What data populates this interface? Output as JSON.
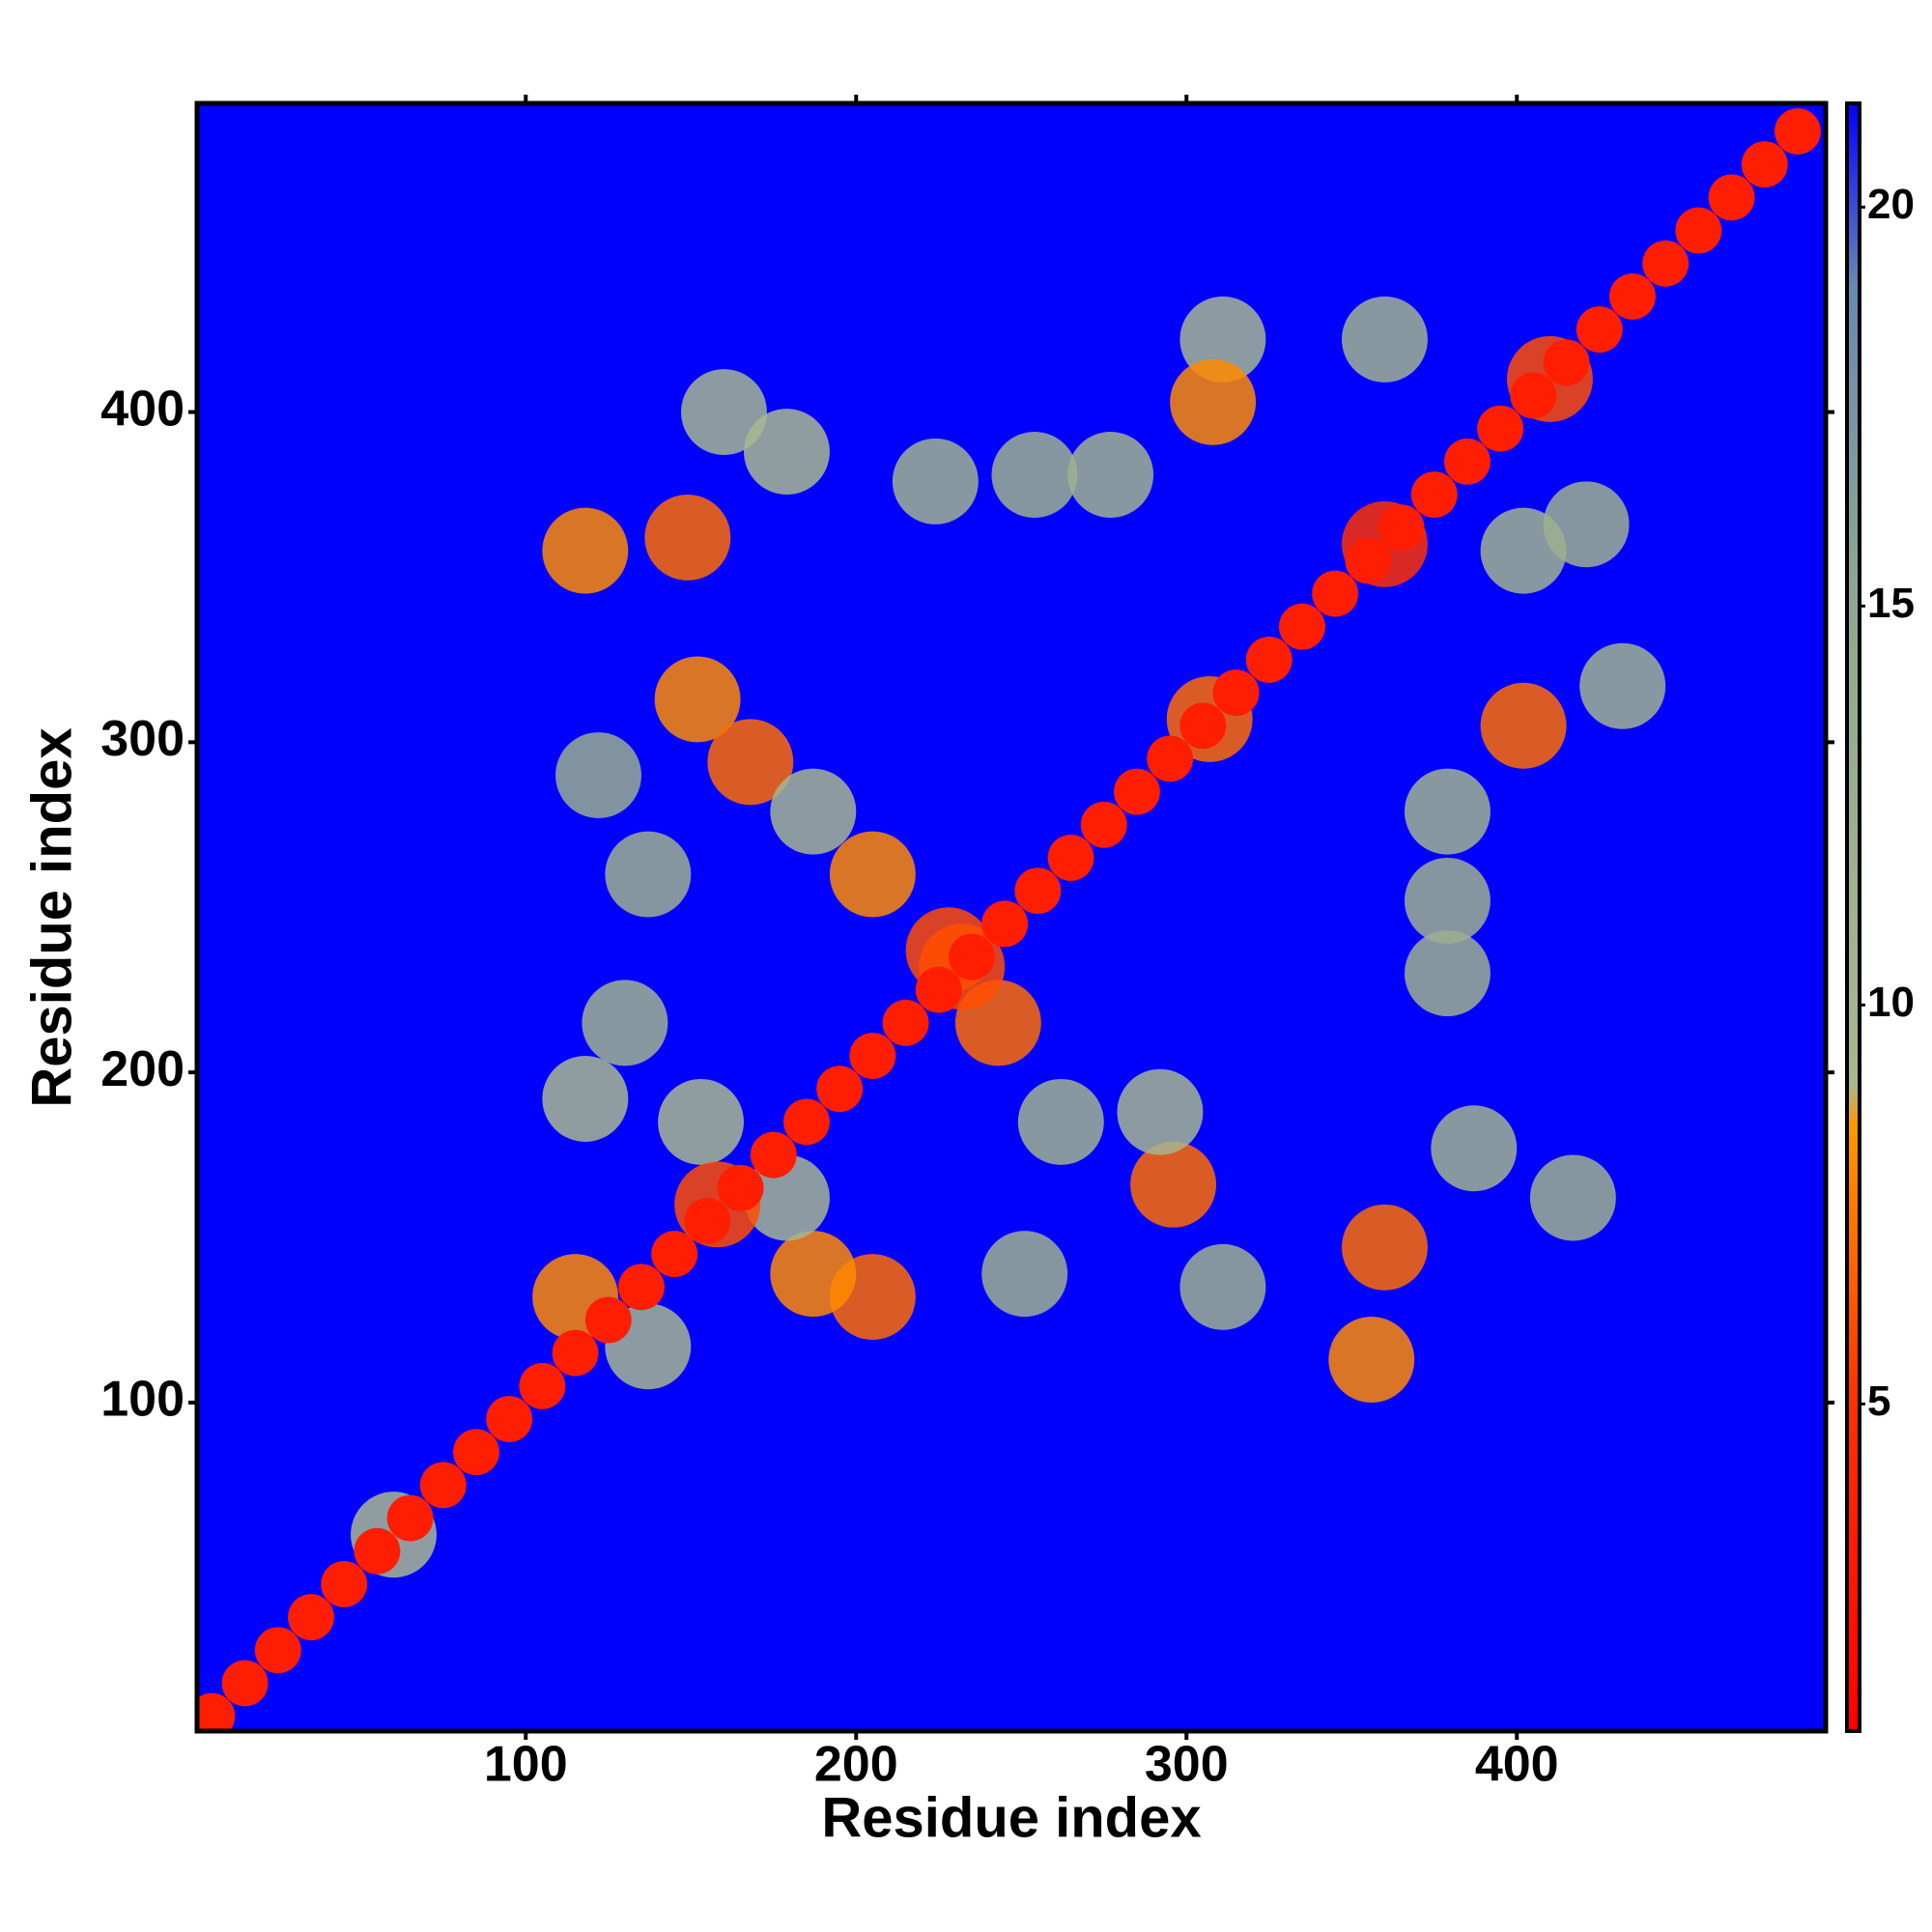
{
  "chart_data": {
    "type": "heatmap",
    "xlabel": "Residue index",
    "ylabel": "Residue index",
    "xlim": [
      0.5,
      493.5
    ],
    "ylim": [
      0.5,
      493.5
    ],
    "xticks": [
      100,
      200,
      300,
      400
    ],
    "yticks": [
      100,
      200,
      300,
      400
    ],
    "background_color": "#0000ff",
    "clim": [
      0.9,
      21.3
    ],
    "cticks": [
      5,
      10,
      15,
      20
    ],
    "colorscale": [
      [
        0.9,
        "#ff0000"
      ],
      [
        5,
        "#ff3000"
      ],
      [
        8.5,
        "#ff9900"
      ],
      [
        9,
        "#a8b890"
      ],
      [
        15,
        "#90a890"
      ],
      [
        19,
        "#6a88b0"
      ],
      [
        21.3,
        "#0000ff"
      ]
    ],
    "x": [
      360,
      356,
      387,
      417,
      296,
      292,
      311,
      262,
      251,
      205,
      187,
      179,
      243,
      228,
      379,
      379,
      379,
      402,
      432,
      402,
      421,
      360,
      311,
      308,
      277,
      254,
      224,
      149,
      118,
      160,
      179,
      152,
      168,
      187,
      137,
      130,
      118,
      115,
      137,
      153,
      205,
      122,
      158,
      360,
      410,
      307,
      232,
      60,
      5,
      15,
      25,
      35,
      45,
      55,
      65,
      75,
      85,
      95,
      105,
      115,
      125,
      135,
      145,
      155,
      165,
      175,
      185,
      195,
      205,
      215,
      225,
      235,
      245,
      255,
      265,
      275,
      285,
      295,
      305,
      315,
      325,
      335,
      345,
      355,
      365,
      375,
      385,
      395,
      405,
      415,
      425,
      435,
      445,
      455,
      465,
      475,
      485
    ],
    "y": [
      147,
      113,
      177,
      162,
      166,
      188,
      135,
      185,
      139,
      132,
      139,
      162,
      215,
      237,
      279,
      252,
      230,
      305,
      317,
      358,
      366,
      422,
      422,
      403,
      381,
      381,
      379,
      362,
      358,
      400,
      388,
      313,
      294,
      279,
      260,
      215,
      192,
      132,
      117,
      185,
      260,
      290,
      160,
      360,
      410,
      307,
      232,
      60,
      5,
      15,
      25,
      35,
      45,
      55,
      65,
      75,
      85,
      95,
      105,
      115,
      125,
      135,
      145,
      155,
      165,
      175,
      185,
      195,
      205,
      215,
      225,
      235,
      245,
      255,
      265,
      275,
      285,
      295,
      305,
      315,
      325,
      335,
      345,
      355,
      365,
      375,
      385,
      395,
      405,
      415,
      425,
      435,
      445,
      455,
      465,
      475,
      485
    ],
    "values": [
      7,
      8,
      11,
      12,
      7,
      10,
      12,
      11,
      12,
      7,
      8,
      10,
      7,
      6,
      11,
      12,
      12,
      7,
      11,
      11,
      12,
      11,
      10,
      8,
      11,
      12,
      11,
      7,
      8,
      10,
      9,
      8,
      7,
      10,
      12,
      11,
      9,
      8,
      10,
      9,
      8,
      13,
      6,
      5,
      6,
      7,
      6,
      9,
      3.5,
      3.5,
      3.5,
      3.5,
      3.5,
      3.5,
      3.5,
      3.5,
      3.5,
      3.5,
      3.5,
      3.5,
      3.5,
      3.5,
      3.5,
      3.5,
      3.5,
      3.5,
      3.5,
      3.5,
      3.5,
      3.5,
      3.5,
      3.5,
      3.5,
      3.5,
      3.5,
      3.5,
      3.5,
      3.5,
      3.5,
      3.5,
      3.5,
      3.5,
      3.5,
      3.5,
      3.5,
      3.5,
      3.5,
      3.5,
      3.5,
      3.5,
      3.5,
      3.5,
      3.5,
      3.5,
      3.5,
      3.5,
      3.5
    ]
  }
}
